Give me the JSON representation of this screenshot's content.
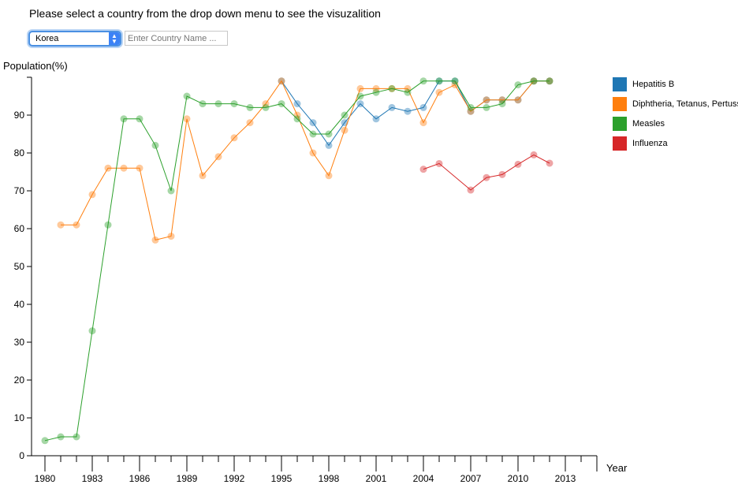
{
  "header": {
    "instruction": "Please select a country from the drop down menu to see the visuzalition"
  },
  "controls": {
    "country_select_value": "Korea",
    "country_input_placeholder": "Enter Country Name ..."
  },
  "chart_data": {
    "type": "line",
    "ylabel": "Population(%)",
    "xlabel": "Year",
    "xlim": [
      1980,
      2015
    ],
    "ylim": [
      0,
      100
    ],
    "x_ticks": [
      1980,
      1983,
      1986,
      1989,
      1992,
      1995,
      1998,
      2001,
      2004,
      2007,
      2010,
      2013
    ],
    "y_ticks": [
      0,
      10,
      20,
      30,
      40,
      50,
      60,
      70,
      80,
      90
    ],
    "legend_position": "top-right",
    "series": [
      {
        "name": "Hepatitis B",
        "color": "#1f77b4",
        "points": [
          [
            1995,
            99
          ],
          [
            1996,
            93
          ],
          [
            1997,
            88
          ],
          [
            1998,
            82
          ],
          [
            1999,
            88
          ],
          [
            2000,
            93
          ],
          [
            2001,
            89
          ],
          [
            2002,
            92
          ],
          [
            2003,
            91
          ],
          [
            2004,
            92
          ],
          [
            2005,
            99
          ],
          [
            2006,
            99
          ],
          [
            2007,
            91
          ],
          [
            2008,
            94
          ],
          [
            2009,
            94
          ],
          [
            2010,
            94
          ],
          [
            2011,
            99
          ],
          [
            2012,
            99
          ]
        ]
      },
      {
        "name": "Diphtheria, Tetanus, Pertussis",
        "color": "#ff7f0e",
        "points": [
          [
            1981,
            61
          ],
          [
            1982,
            61
          ],
          [
            1983,
            69
          ],
          [
            1984,
            76
          ],
          [
            1985,
            76
          ],
          [
            1986,
            76
          ],
          [
            1987,
            57
          ],
          [
            1988,
            58
          ],
          [
            1989,
            89
          ],
          [
            1990,
            74
          ],
          [
            1991,
            79
          ],
          [
            1992,
            84
          ],
          [
            1993,
            88
          ],
          [
            1994,
            93
          ],
          [
            1995,
            99
          ],
          [
            1996,
            90
          ],
          [
            1997,
            80
          ],
          [
            1998,
            74
          ],
          [
            1999,
            86
          ],
          [
            2000,
            97
          ],
          [
            2001,
            97
          ],
          [
            2002,
            97
          ],
          [
            2003,
            97
          ],
          [
            2004,
            88
          ],
          [
            2005,
            96
          ],
          [
            2006,
            98
          ],
          [
            2007,
            91
          ],
          [
            2008,
            94
          ],
          [
            2009,
            94
          ],
          [
            2010,
            94
          ],
          [
            2011,
            99
          ],
          [
            2012,
            99
          ]
        ]
      },
      {
        "name": "Measles",
        "color": "#2ca02c",
        "points": [
          [
            1980,
            4
          ],
          [
            1981,
            5
          ],
          [
            1982,
            5
          ],
          [
            1983,
            33
          ],
          [
            1984,
            61
          ],
          [
            1985,
            89
          ],
          [
            1986,
            89
          ],
          [
            1987,
            82
          ],
          [
            1988,
            70
          ],
          [
            1989,
            95
          ],
          [
            1990,
            93
          ],
          [
            1991,
            93
          ],
          [
            1992,
            93
          ],
          [
            1993,
            92
          ],
          [
            1994,
            92
          ],
          [
            1995,
            93
          ],
          [
            1996,
            89
          ],
          [
            1997,
            85
          ],
          [
            1998,
            85
          ],
          [
            1999,
            90
          ],
          [
            2000,
            95
          ],
          [
            2001,
            96
          ],
          [
            2002,
            97
          ],
          [
            2003,
            96
          ],
          [
            2004,
            99
          ],
          [
            2005,
            99
          ],
          [
            2006,
            99
          ],
          [
            2007,
            92
          ],
          [
            2008,
            92
          ],
          [
            2009,
            93
          ],
          [
            2010,
            98
          ],
          [
            2011,
            99
          ],
          [
            2012,
            99
          ]
        ]
      },
      {
        "name": "Influenza",
        "color": "#d62728",
        "points": [
          [
            2004,
            75.7
          ],
          [
            2005,
            77.2
          ],
          [
            2007,
            70.2
          ],
          [
            2008,
            73.5
          ],
          [
            2009,
            74.3
          ],
          [
            2010,
            77
          ],
          [
            2011,
            79.5
          ],
          [
            2012,
            77.3
          ]
        ]
      }
    ]
  }
}
